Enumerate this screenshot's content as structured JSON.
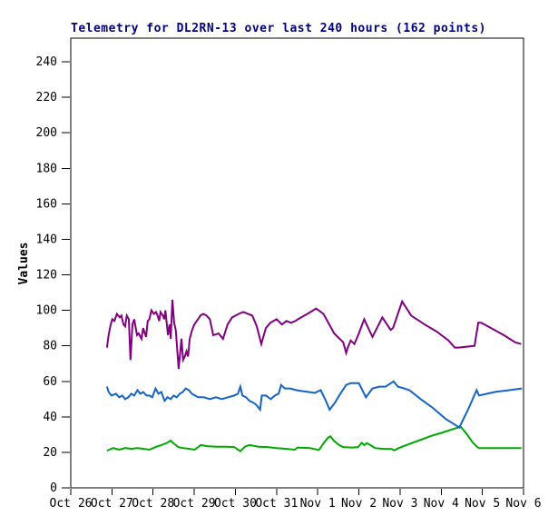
{
  "window": {
    "background": "#ffffff"
  },
  "chart_data": {
    "type": "line",
    "title": "Telemetry for DL2RN-13 over last 240 hours (162 points)",
    "title_color": "#000080",
    "xlabel": "",
    "ylabel": "Values",
    "grid": false,
    "legend": "none",
    "axis_color": "#000000",
    "ylim": [
      0,
      240
    ],
    "y_ticks": [
      0,
      20,
      40,
      60,
      80,
      100,
      120,
      140,
      160,
      180,
      200,
      220,
      240
    ],
    "x_tick_labels": [
      "Oct 26",
      "Oct 27",
      "Oct 28",
      "Oct 29",
      "Oct 30",
      "Oct 31",
      "Nov 1",
      "Nov 2",
      "Nov 3",
      "Nov 4",
      "Nov 5",
      "Nov 6"
    ],
    "x_unit": "days since Oct 26 00:00",
    "xlim": [
      0,
      11
    ],
    "series": [
      {
        "name": "series-green",
        "color": "#00A800",
        "points": [
          [
            0.88,
            21
          ],
          [
            1.03,
            22.4
          ],
          [
            1.18,
            21.5
          ],
          [
            1.32,
            22.4
          ],
          [
            1.47,
            22
          ],
          [
            1.62,
            22.4
          ],
          [
            1.76,
            22
          ],
          [
            1.91,
            21.5
          ],
          [
            2.06,
            23
          ],
          [
            2.2,
            24.1
          ],
          [
            2.31,
            25
          ],
          [
            2.43,
            26.6
          ],
          [
            2.5,
            25
          ],
          [
            2.61,
            23
          ],
          [
            2.72,
            22.4
          ],
          [
            2.87,
            22
          ],
          [
            3.01,
            21.5
          ],
          [
            3.16,
            24.1
          ],
          [
            3.31,
            23.5
          ],
          [
            3.53,
            23.2
          ],
          [
            3.75,
            23.2
          ],
          [
            3.97,
            23
          ],
          [
            4.12,
            20.6
          ],
          [
            4.23,
            23.2
          ],
          [
            4.34,
            24.1
          ],
          [
            4.56,
            23.2
          ],
          [
            4.78,
            23
          ],
          [
            5.0,
            22.4
          ],
          [
            5.22,
            22
          ],
          [
            5.44,
            21.5
          ],
          [
            5.51,
            22.7
          ],
          [
            5.81,
            22.4
          ],
          [
            6.03,
            21.3
          ],
          [
            6.14,
            25
          ],
          [
            6.25,
            28.3
          ],
          [
            6.31,
            29
          ],
          [
            6.39,
            26.6
          ],
          [
            6.5,
            24.4
          ],
          [
            6.61,
            23
          ],
          [
            6.83,
            22.7
          ],
          [
            6.98,
            23
          ],
          [
            7.07,
            25.4
          ],
          [
            7.13,
            24.1
          ],
          [
            7.19,
            25.2
          ],
          [
            7.28,
            24.1
          ],
          [
            7.39,
            22.4
          ],
          [
            7.57,
            22
          ],
          [
            7.79,
            21.9
          ],
          [
            7.86,
            21.1
          ],
          [
            7.97,
            22.4
          ],
          [
            8.19,
            24.4
          ],
          [
            8.45,
            26.6
          ],
          [
            8.75,
            29.2
          ],
          [
            9.04,
            31.2
          ],
          [
            9.33,
            33.4
          ],
          [
            9.48,
            34.3
          ],
          [
            9.63,
            30
          ],
          [
            9.77,
            25.4
          ],
          [
            9.87,
            23.2
          ],
          [
            9.92,
            22.4
          ],
          [
            10.29,
            22.4
          ],
          [
            10.66,
            22.4
          ],
          [
            10.95,
            22.4
          ]
        ]
      },
      {
        "name": "series-blue",
        "color": "#1464C8",
        "points": [
          [
            0.88,
            57
          ],
          [
            0.92,
            54
          ],
          [
            0.99,
            52
          ],
          [
            1.1,
            53
          ],
          [
            1.18,
            51
          ],
          [
            1.25,
            52
          ],
          [
            1.32,
            50
          ],
          [
            1.4,
            51
          ],
          [
            1.47,
            53
          ],
          [
            1.54,
            52
          ],
          [
            1.62,
            55
          ],
          [
            1.69,
            53
          ],
          [
            1.76,
            54
          ],
          [
            1.84,
            52
          ],
          [
            1.91,
            52
          ],
          [
            1.98,
            51
          ],
          [
            2.06,
            56
          ],
          [
            2.13,
            53
          ],
          [
            2.2,
            54
          ],
          [
            2.28,
            49
          ],
          [
            2.35,
            51
          ],
          [
            2.43,
            50
          ],
          [
            2.5,
            52
          ],
          [
            2.57,
            51
          ],
          [
            2.65,
            53
          ],
          [
            2.72,
            54
          ],
          [
            2.79,
            56
          ],
          [
            2.87,
            55
          ],
          [
            2.94,
            53
          ],
          [
            3.09,
            51
          ],
          [
            3.23,
            51
          ],
          [
            3.38,
            50
          ],
          [
            3.53,
            51
          ],
          [
            3.67,
            50
          ],
          [
            3.82,
            51
          ],
          [
            3.97,
            52
          ],
          [
            4.06,
            53
          ],
          [
            4.12,
            57
          ],
          [
            4.17,
            52
          ],
          [
            4.26,
            51
          ],
          [
            4.34,
            49
          ],
          [
            4.43,
            48
          ],
          [
            4.5,
            47
          ],
          [
            4.6,
            44
          ],
          [
            4.64,
            52
          ],
          [
            4.74,
            52
          ],
          [
            4.86,
            50
          ],
          [
            4.96,
            52
          ],
          [
            5.05,
            53
          ],
          [
            5.11,
            58
          ],
          [
            5.2,
            56
          ],
          [
            5.33,
            56
          ],
          [
            5.48,
            55
          ],
          [
            5.62,
            54.5
          ],
          [
            5.78,
            54
          ],
          [
            5.93,
            53.5
          ],
          [
            6.07,
            55
          ],
          [
            6.18,
            50
          ],
          [
            6.29,
            44
          ],
          [
            6.42,
            48
          ],
          [
            6.55,
            53
          ],
          [
            6.69,
            58
          ],
          [
            6.8,
            59
          ],
          [
            7.0,
            59
          ],
          [
            7.17,
            51
          ],
          [
            7.33,
            56
          ],
          [
            7.5,
            57
          ],
          [
            7.65,
            57
          ],
          [
            7.84,
            60
          ],
          [
            7.95,
            57
          ],
          [
            8.1,
            56
          ],
          [
            8.23,
            55
          ],
          [
            8.5,
            50
          ],
          [
            8.8,
            45
          ],
          [
            9.1,
            39
          ],
          [
            9.44,
            34
          ],
          [
            9.65,
            44
          ],
          [
            9.86,
            55
          ],
          [
            9.92,
            52
          ],
          [
            10.3,
            54
          ],
          [
            10.65,
            55
          ],
          [
            10.96,
            56
          ]
        ]
      },
      {
        "name": "series-purple",
        "color": "#800080",
        "points": [
          [
            0.88,
            79
          ],
          [
            0.92,
            86
          ],
          [
            0.97,
            92
          ],
          [
            1.01,
            95
          ],
          [
            1.06,
            94
          ],
          [
            1.12,
            98
          ],
          [
            1.19,
            96
          ],
          [
            1.23,
            97
          ],
          [
            1.28,
            92
          ],
          [
            1.32,
            91
          ],
          [
            1.36,
            97
          ],
          [
            1.41,
            95
          ],
          [
            1.45,
            72
          ],
          [
            1.5,
            92
          ],
          [
            1.54,
            95
          ],
          [
            1.61,
            86
          ],
          [
            1.65,
            87
          ],
          [
            1.72,
            84
          ],
          [
            1.76,
            90
          ],
          [
            1.83,
            85
          ],
          [
            1.87,
            94
          ],
          [
            1.91,
            95
          ],
          [
            1.96,
            100
          ],
          [
            2.02,
            98
          ],
          [
            2.07,
            99
          ],
          [
            2.11,
            97
          ],
          [
            2.15,
            94
          ],
          [
            2.18,
            99
          ],
          [
            2.24,
            97
          ],
          [
            2.27,
            95
          ],
          [
            2.3,
            100
          ],
          [
            2.33,
            93
          ],
          [
            2.36,
            86
          ],
          [
            2.4,
            92
          ],
          [
            2.43,
            84
          ],
          [
            2.47,
            106
          ],
          [
            2.51,
            93
          ],
          [
            2.55,
            89
          ],
          [
            2.62,
            67
          ],
          [
            2.65,
            74
          ],
          [
            2.69,
            84
          ],
          [
            2.73,
            72
          ],
          [
            2.77,
            74
          ],
          [
            2.81,
            77
          ],
          [
            2.85,
            74
          ],
          [
            2.89,
            84
          ],
          [
            2.95,
            89
          ],
          [
            3.0,
            92
          ],
          [
            3.09,
            95
          ],
          [
            3.15,
            97
          ],
          [
            3.22,
            98
          ],
          [
            3.3,
            97
          ],
          [
            3.38,
            95
          ],
          [
            3.46,
            86
          ],
          [
            3.59,
            87
          ],
          [
            3.7,
            84
          ],
          [
            3.81,
            92
          ],
          [
            3.92,
            96
          ],
          [
            4.08,
            98
          ],
          [
            4.19,
            99
          ],
          [
            4.41,
            97
          ],
          [
            4.52,
            91
          ],
          [
            4.63,
            81
          ],
          [
            4.74,
            90
          ],
          [
            4.85,
            93
          ],
          [
            5.0,
            95
          ],
          [
            5.13,
            92
          ],
          [
            5.24,
            94
          ],
          [
            5.35,
            93
          ],
          [
            5.46,
            94
          ],
          [
            5.52,
            95
          ],
          [
            5.75,
            98
          ],
          [
            5.96,
            101
          ],
          [
            6.14,
            98
          ],
          [
            6.4,
            87
          ],
          [
            6.62,
            82
          ],
          [
            6.69,
            76
          ],
          [
            6.73,
            79
          ],
          [
            6.8,
            83
          ],
          [
            6.89,
            81
          ],
          [
            7.0,
            87
          ],
          [
            7.13,
            95
          ],
          [
            7.33,
            85
          ],
          [
            7.57,
            96
          ],
          [
            7.77,
            89
          ],
          [
            7.83,
            90
          ],
          [
            8.05,
            105
          ],
          [
            8.16,
            101
          ],
          [
            8.27,
            97
          ],
          [
            8.6,
            92
          ],
          [
            8.89,
            88
          ],
          [
            9.18,
            83
          ],
          [
            9.33,
            79
          ],
          [
            9.42,
            79
          ],
          [
            9.81,
            80
          ],
          [
            9.9,
            93
          ],
          [
            9.97,
            93
          ],
          [
            10.21,
            90
          ],
          [
            10.52,
            86
          ],
          [
            10.8,
            82
          ],
          [
            10.94,
            81
          ]
        ]
      }
    ]
  }
}
